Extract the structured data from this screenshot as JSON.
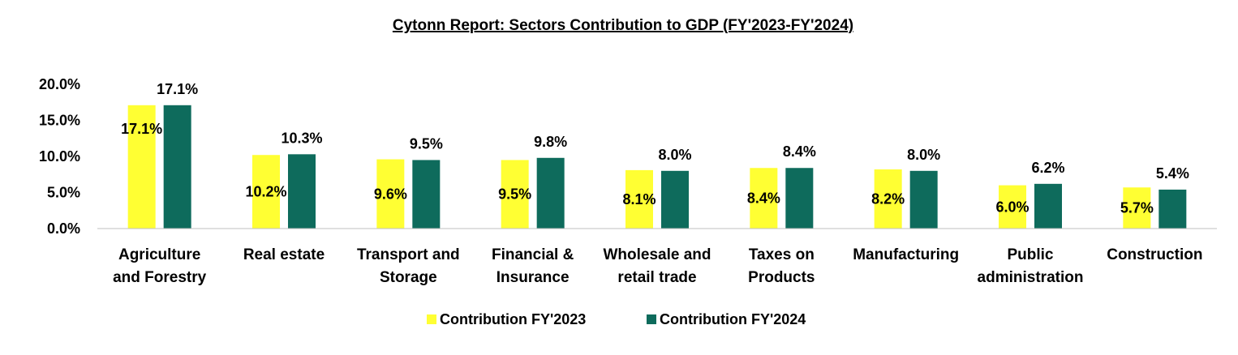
{
  "chart_data": {
    "type": "bar",
    "title": "Cytonn Report:  Sectors Contribution to GDP (FY'2023-FY'2024)",
    "categories": [
      [
        "Agriculture",
        "and Forestry"
      ],
      [
        "Real estate"
      ],
      [
        "Transport and",
        "Storage"
      ],
      [
        "Financial &",
        "Insurance"
      ],
      [
        "Wholesale and",
        "retail trade"
      ],
      [
        "Taxes on",
        "Products"
      ],
      [
        "Manufacturing"
      ],
      [
        "Public",
        "administration"
      ],
      [
        "Construction"
      ]
    ],
    "series": [
      {
        "name": "Contribution FY'2023",
        "color": "#FFFF33",
        "values": [
          17.1,
          10.2,
          9.6,
          9.5,
          8.1,
          8.4,
          8.2,
          6.0,
          5.7
        ],
        "labels": [
          "17.1%",
          "10.2%",
          "9.6%",
          "9.5%",
          "8.1%",
          "8.4%",
          "8.2%",
          "6.0%",
          "5.7%"
        ]
      },
      {
        "name": "Contribution FY'2024",
        "color": "#0E6B5C",
        "values": [
          17.1,
          10.3,
          9.5,
          9.8,
          8.0,
          8.4,
          8.0,
          6.2,
          5.4
        ],
        "labels": [
          "17.1%",
          "10.3%",
          "9.5%",
          "9.8%",
          "8.0%",
          "8.4%",
          "8.0%",
          "6.2%",
          "5.4%"
        ]
      }
    ],
    "y_ticks": [
      0,
      5,
      10,
      15,
      20
    ],
    "y_tick_labels": [
      "0.0%",
      "5.0%",
      "10.0%",
      "15.0%",
      "20.0%"
    ],
    "ylim": [
      0,
      20
    ],
    "grid": false,
    "legend_position": "bottom"
  }
}
